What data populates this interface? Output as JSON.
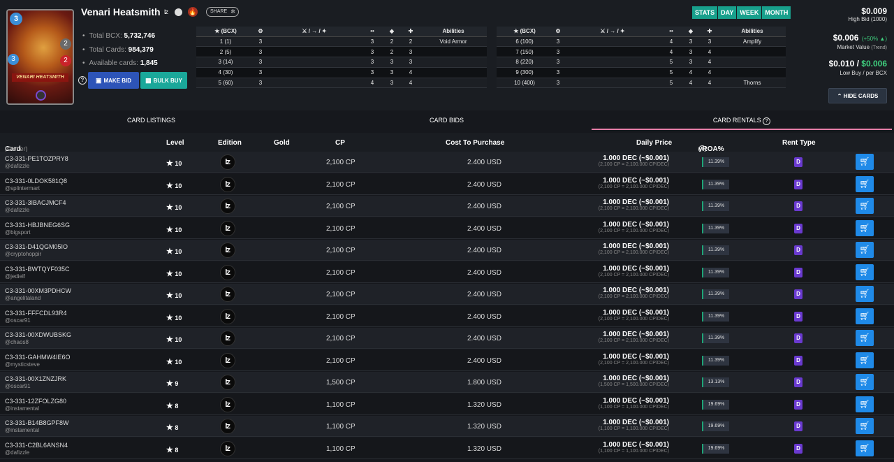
{
  "card": {
    "title": "Venari Heatsmith",
    "art_name": "VENARI HEATSMITH",
    "mana": "3",
    "speed": "3",
    "health": "2",
    "armor": "2",
    "share_label": "SHARE"
  },
  "stats": {
    "total_bcx_label": "Total BCX:",
    "total_bcx": "5,732,746",
    "total_cards_label": "Total Cards:",
    "total_cards": "984,379",
    "available_label": "Available cards:",
    "available": "1,845"
  },
  "actions": {
    "make_bid": "MAKE BID",
    "bulk_buy": "BULK BUY",
    "hide_cards": "HIDE CARDS"
  },
  "level_table": {
    "headers": [
      "(BCX)",
      "Abilities",
      "(BCX)",
      "Abilities"
    ],
    "left": [
      [
        "1 (1)",
        "3",
        "3",
        "2",
        "2",
        "Void Armor"
      ],
      [
        "2 (5)",
        "3",
        "3",
        "2",
        "3",
        ""
      ],
      [
        "3 (14)",
        "3",
        "3",
        "3",
        "3",
        ""
      ],
      [
        "4 (30)",
        "3",
        "3",
        "3",
        "4",
        ""
      ],
      [
        "5 (60)",
        "3",
        "4",
        "3",
        "4",
        ""
      ]
    ],
    "right": [
      [
        "6 (100)",
        "3",
        "4",
        "3",
        "3",
        "Amplify"
      ],
      [
        "7 (150)",
        "3",
        "4",
        "3",
        "4",
        ""
      ],
      [
        "8 (220)",
        "3",
        "5",
        "3",
        "4",
        ""
      ],
      [
        "9 (300)",
        "3",
        "5",
        "4",
        "4",
        ""
      ],
      [
        "10 (400)",
        "3",
        "5",
        "4",
        "4",
        "Thorns"
      ]
    ]
  },
  "range_tabs": [
    "STATS",
    "DAY",
    "WEEK",
    "MONTH"
  ],
  "prices": {
    "high_bid": "$0.009",
    "high_bid_label": "High Bid (1000)",
    "market_value": "$0.006",
    "trend": "(+50% ▲)",
    "market_label": "Market Value",
    "trend_label": "(Trend)",
    "low_buy": "$0.010",
    "per_bcx": "$0.006",
    "low_label": "Low Buy / per BCX"
  },
  "tabs": [
    "CARD LISTINGS",
    "CARD BIDS",
    "CARD RENTALS"
  ],
  "columns": {
    "card": "Card",
    "owner": "(Owner)",
    "level": "Level",
    "edition": "Edition",
    "gold": "Gold",
    "cp": "CP",
    "cost": "Cost To Purchase",
    "daily": "Daily Price",
    "yroa": "yROA%",
    "rent_type": "Rent Type"
  },
  "listings": [
    {
      "id": "C3-331-PE1TOZPRY8",
      "owner": "@dafizzle",
      "level": "10",
      "cp": "2,100 CP",
      "cost": "2.400 USD",
      "price": "1.000 DEC (~$0.001)",
      "sub": "(2,100 CP = 2,100.000 CP/DEC)",
      "roa": "11.39%"
    },
    {
      "id": "C3-331-0LDOK581Q8",
      "owner": "@splintermart",
      "level": "10",
      "cp": "2,100 CP",
      "cost": "2.400 USD",
      "price": "1.000 DEC (~$0.001)",
      "sub": "(2,100 CP = 2,100.000 CP/DEC)",
      "roa": "11.39%"
    },
    {
      "id": "C3-331-3IBACJMCF4",
      "owner": "@dafizzle",
      "level": "10",
      "cp": "2,100 CP",
      "cost": "2.400 USD",
      "price": "1.000 DEC (~$0.001)",
      "sub": "(2,100 CP = 2,100.000 CP/DEC)",
      "roa": "11.39%"
    },
    {
      "id": "C3-331-HBJBNEG6SG",
      "owner": "@bigsport",
      "level": "10",
      "cp": "2,100 CP",
      "cost": "2.400 USD",
      "price": "1.000 DEC (~$0.001)",
      "sub": "(2,100 CP = 2,100.000 CP/DEC)",
      "roa": "11.39%"
    },
    {
      "id": "C3-331-D41QGM05IO",
      "owner": "@cryptohoppir",
      "level": "10",
      "cp": "2,100 CP",
      "cost": "2.400 USD",
      "price": "1.000 DEC (~$0.001)",
      "sub": "(2,100 CP = 2,100.000 CP/DEC)",
      "roa": "11.39%"
    },
    {
      "id": "C3-331-BWTQYF035C",
      "owner": "@jedielf",
      "level": "10",
      "cp": "2,100 CP",
      "cost": "2.400 USD",
      "price": "1.000 DEC (~$0.001)",
      "sub": "(2,100 CP = 2,100.000 CP/DEC)",
      "roa": "11.39%"
    },
    {
      "id": "C3-331-00XM3PDHCW",
      "owner": "@angelitaland",
      "level": "10",
      "cp": "2,100 CP",
      "cost": "2.400 USD",
      "price": "1.000 DEC (~$0.001)",
      "sub": "(2,100 CP = 2,100.000 CP/DEC)",
      "roa": "11.39%"
    },
    {
      "id": "C3-331-FFFCDL93R4",
      "owner": "@oscar91",
      "level": "10",
      "cp": "2,100 CP",
      "cost": "2.400 USD",
      "price": "1.000 DEC (~$0.001)",
      "sub": "(2,100 CP = 2,100.000 CP/DEC)",
      "roa": "11.39%"
    },
    {
      "id": "C3-331-00XDWUBSKG",
      "owner": "@chaos8",
      "level": "10",
      "cp": "2,100 CP",
      "cost": "2.400 USD",
      "price": "1.000 DEC (~$0.001)",
      "sub": "(2,100 CP = 2,100.000 CP/DEC)",
      "roa": "11.39%"
    },
    {
      "id": "C3-331-GAHMW4IE6O",
      "owner": "@mysticsteve",
      "level": "10",
      "cp": "2,100 CP",
      "cost": "2.400 USD",
      "price": "1.000 DEC (~$0.001)",
      "sub": "(2,100 CP = 2,100.000 CP/DEC)",
      "roa": "11.39%"
    },
    {
      "id": "C3-331-00X1ZNZJRK",
      "owner": "@oscar91",
      "level": "9",
      "cp": "1,500 CP",
      "cost": "1.800 USD",
      "price": "1.000 DEC (~$0.001)",
      "sub": "(1,500 CP = 1,500.000 CP/DEC)",
      "roa": "13.13%"
    },
    {
      "id": "C3-331-12ZFOLZG80",
      "owner": "@instamental",
      "level": "8",
      "cp": "1,100 CP",
      "cost": "1.320 USD",
      "price": "1.000 DEC (~$0.001)",
      "sub": "(1,100 CP = 1,100.000 CP/DEC)",
      "roa": "19.69%"
    },
    {
      "id": "C3-331-B14B8GPF8W",
      "owner": "@instamental",
      "level": "8",
      "cp": "1,100 CP",
      "cost": "1.320 USD",
      "price": "1.000 DEC (~$0.001)",
      "sub": "(1,100 CP = 1,100.000 CP/DEC)",
      "roa": "19.69%"
    },
    {
      "id": "C3-331-C2BL6ANSN4",
      "owner": "@dafizzle",
      "level": "8",
      "cp": "1,100 CP",
      "cost": "1.320 USD",
      "price": "1.000 DEC (~$0.001)",
      "sub": "(1,100 CP = 1,100.000 CP/DEC)",
      "roa": "19.69%"
    }
  ],
  "rent_type_value": "D",
  "edition_icon": "alpha-edition-icon",
  "colors": {
    "accent_teal": "#18a08c",
    "accent_blue": "#1f8ae8",
    "tab_active": "#e67ea8",
    "rent_purple": "#6a3ad0"
  }
}
